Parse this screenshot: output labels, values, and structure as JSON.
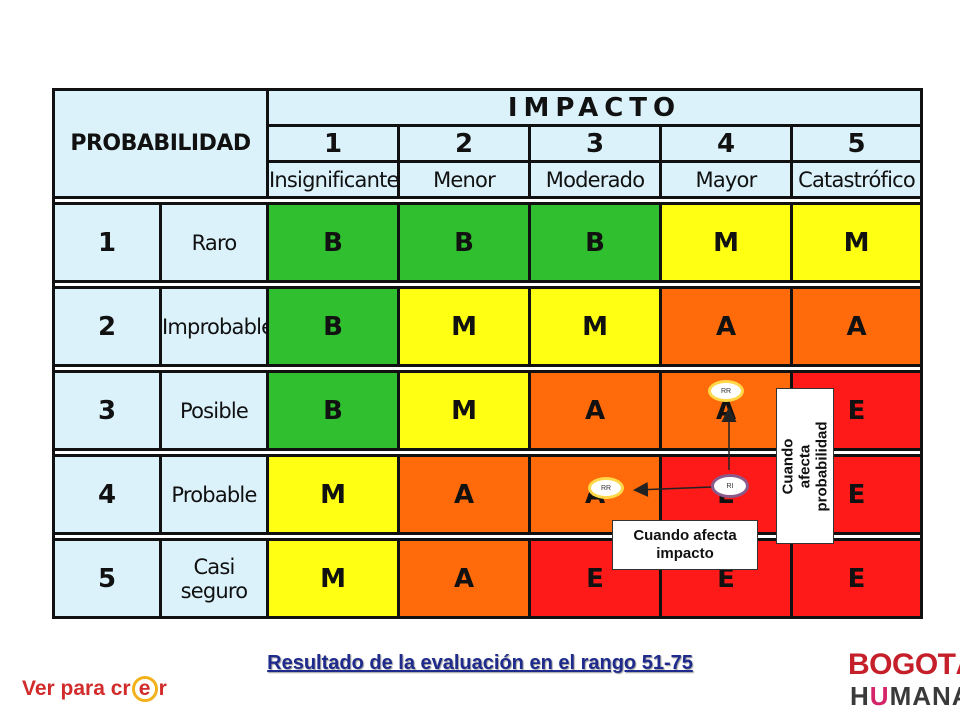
{
  "matrix": {
    "probability_title": "PROBABILIDAD",
    "impact_title": "IMPACTO",
    "impact_levels": [
      {
        "number": "1",
        "name": "Insignificante"
      },
      {
        "number": "2",
        "name": "Menor"
      },
      {
        "number": "3",
        "name": "Moderado"
      },
      {
        "number": "4",
        "name": "Mayor"
      },
      {
        "number": "5",
        "name": "Catastrófico"
      }
    ],
    "rows": [
      {
        "number": "1",
        "name": "Raro",
        "cells": [
          "B",
          "B",
          "B",
          "M",
          "M"
        ]
      },
      {
        "number": "2",
        "name": "Improbable",
        "cells": [
          "B",
          "M",
          "M",
          "A",
          "A"
        ]
      },
      {
        "number": "3",
        "name": "Posible",
        "cells": [
          "B",
          "M",
          "A",
          "A",
          "E"
        ]
      },
      {
        "number": "4",
        "name": "Probable",
        "cells": [
          "M",
          "A",
          "A",
          "E",
          "E"
        ]
      },
      {
        "number": "5",
        "name": "Casi seguro",
        "cells": [
          "M",
          "A",
          "E",
          "E",
          "E"
        ]
      }
    ]
  },
  "level_colors": {
    "B": "#2fbf2f",
    "M": "#ffff14",
    "A": "#ff6a0a",
    "E": "#ff1a1a"
  },
  "header_color": "#dbf2fb",
  "markers": {
    "rr_up": "RR",
    "rr_left": "RR",
    "ri": "RI"
  },
  "annotations": {
    "probability": "Cuando afecta probabilidad",
    "impact": "Cuando afecta impacto"
  },
  "footer": {
    "caption": "Resultado de la evaluación en el rango 51-75",
    "slogan_before": "Ver para cr",
    "slogan_circle": "e",
    "slogan_after": "r",
    "logo_bogota": "BOGOTÁ",
    "logo_humana_1": "H",
    "logo_humana_2": "U",
    "logo_humana_3": "MANA"
  }
}
